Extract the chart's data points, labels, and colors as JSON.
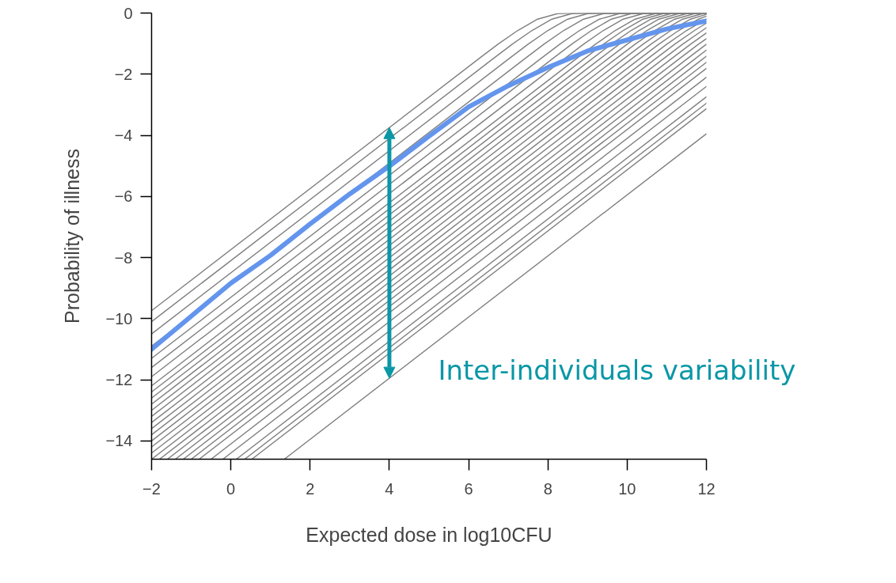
{
  "chart_data": {
    "type": "line",
    "xlabel": "Expected dose in log10CFU",
    "ylabel": "Probability of illness",
    "xlim": [
      -2,
      12
    ],
    "ylim": [
      -14.6,
      0
    ],
    "xticks": [
      -2,
      0,
      2,
      4,
      6,
      8,
      10,
      12
    ],
    "yticks": [
      -14,
      -12,
      -10,
      -8,
      -6,
      -4,
      -2,
      0
    ],
    "grid": false,
    "annotations": [
      {
        "text": "Inter-individuals variability",
        "x": 4,
        "y": -11.9
      }
    ],
    "series": [
      {
        "color": "#808080",
        "x": [
          -2,
          6.24,
          6.74,
          7.24,
          7.74,
          8.24,
          8.74,
          12
        ],
        "values": [
          -9.74,
          -1.51,
          -1.02,
          -0.57,
          -0.2,
          -0.02,
          0,
          0
        ]
      },
      {
        "color": "#808080",
        "x": [
          -2,
          6.6,
          7.1,
          7.6,
          8.1,
          8.6,
          9.1,
          12
        ],
        "values": [
          -10.1,
          -1.51,
          -1.02,
          -0.57,
          -0.2,
          -0.02,
          0,
          0
        ]
      },
      {
        "color": "#808080",
        "x": [
          -2,
          7.0,
          7.5,
          8.0,
          8.5,
          9.0,
          9.5,
          12
        ],
        "values": [
          -10.5,
          -1.51,
          -1.02,
          -0.57,
          -0.2,
          -0.02,
          0,
          0
        ]
      },
      {
        "color": "#808080",
        "x": [
          -2,
          7.4,
          7.9,
          8.4,
          8.9,
          9.4,
          9.9,
          12
        ],
        "values": [
          -10.9,
          -1.51,
          -1.02,
          -0.57,
          -0.2,
          -0.02,
          0,
          0
        ]
      },
      {
        "color": "#808080",
        "x": [
          -2,
          7.8,
          8.3,
          8.8,
          9.3,
          9.8,
          10.3,
          12
        ],
        "values": [
          -11.3,
          -1.51,
          -1.02,
          -0.57,
          -0.2,
          -0.02,
          0,
          0
        ]
      },
      {
        "color": "#808080",
        "x": [
          -2,
          8.1,
          8.6,
          9.1,
          9.6,
          10.1,
          10.6,
          12
        ],
        "values": [
          -11.6,
          -1.51,
          -1.02,
          -0.57,
          -0.2,
          -0.02,
          0,
          0
        ]
      },
      {
        "color": "#808080",
        "x": [
          -2,
          8.4,
          8.9,
          9.4,
          9.9,
          10.4,
          10.9,
          12
        ],
        "values": [
          -11.9,
          -1.51,
          -1.02,
          -0.57,
          -0.2,
          -0.02,
          0,
          0
        ]
      },
      {
        "color": "#808080",
        "x": [
          -2,
          8.7,
          9.2,
          9.7,
          10.2,
          10.7,
          11.2,
          12
        ],
        "values": [
          -12.2,
          -1.51,
          -1.02,
          -0.57,
          -0.2,
          -0.02,
          0,
          0
        ]
      },
      {
        "color": "#808080",
        "x": [
          -2,
          8.9,
          9.4,
          9.9,
          10.4,
          10.9,
          11.4,
          12
        ],
        "values": [
          -12.4,
          -1.51,
          -1.02,
          -0.57,
          -0.2,
          -0.02,
          0,
          0
        ]
      },
      {
        "color": "#808080",
        "x": [
          -2,
          9.1,
          9.6,
          10.1,
          10.6,
          11.1,
          11.6,
          12
        ],
        "values": [
          -12.6,
          -1.51,
          -1.02,
          -0.57,
          -0.2,
          -0.02,
          0,
          0
        ]
      },
      {
        "color": "#808080",
        "x": [
          -2,
          9.3,
          9.8,
          10.3,
          10.8,
          11.3,
          11.8,
          12
        ],
        "values": [
          -12.8,
          -1.51,
          -1.02,
          -0.57,
          -0.2,
          -0.02,
          0,
          0
        ]
      },
      {
        "color": "#808080",
        "x": [
          -2,
          9.5,
          10.0,
          10.5,
          11.0,
          11.5,
          12
        ],
        "values": [
          -13.0,
          -1.51,
          -1.02,
          -0.57,
          -0.2,
          -0.02,
          0
        ]
      },
      {
        "color": "#808080",
        "x": [
          -2,
          9.7,
          10.2,
          10.7,
          11.2,
          11.7,
          12
        ],
        "values": [
          -13.2,
          -1.51,
          -1.02,
          -0.57,
          -0.2,
          -0.02,
          0
        ]
      },
      {
        "color": "#808080",
        "x": [
          -2,
          9.9,
          10.4,
          10.9,
          11.4,
          11.9,
          12
        ],
        "values": [
          -13.4,
          -1.51,
          -1.02,
          -0.57,
          -0.2,
          -0.02,
          -0.01
        ]
      },
      {
        "color": "#808080",
        "x": [
          -2,
          10.1,
          10.6,
          11.1,
          11.6,
          12
        ],
        "values": [
          -13.6,
          -1.51,
          -1.02,
          -0.57,
          -0.2,
          -0.04
        ]
      },
      {
        "color": "#808080",
        "x": [
          -2,
          10.3,
          10.8,
          11.3,
          11.8,
          12
        ],
        "values": [
          -13.8,
          -1.51,
          -1.02,
          -0.57,
          -0.2,
          -0.1
        ]
      },
      {
        "color": "#808080",
        "x": [
          -2,
          10.5,
          11.0,
          11.5,
          12
        ],
        "values": [
          -14.0,
          -1.51,
          -1.02,
          -0.57,
          -0.2
        ]
      },
      {
        "color": "#808080",
        "x": [
          -2,
          10.7,
          11.2,
          11.7,
          12
        ],
        "values": [
          -14.2,
          -1.51,
          -1.02,
          -0.57,
          -0.33
        ]
      },
      {
        "color": "#808080",
        "x": [
          -2,
          10.9,
          11.4,
          11.9,
          12
        ],
        "values": [
          -14.4,
          -1.51,
          -1.02,
          -0.57,
          -0.48
        ]
      },
      {
        "color": "#808080",
        "x": [
          -2,
          11.1,
          11.6,
          12
        ],
        "values": [
          -14.6,
          -1.51,
          -1.02,
          -0.65
        ]
      },
      {
        "color": "#808080",
        "x": [
          -1.8,
          11.3,
          11.8,
          12
        ],
        "values": [
          -14.6,
          -1.51,
          -1.02,
          -0.84
        ]
      },
      {
        "color": "#808080",
        "x": [
          -1.6,
          11.5,
          12
        ],
        "values": [
          -14.6,
          -1.51,
          -1.02
        ]
      },
      {
        "color": "#808080",
        "x": [
          -1.4,
          11.7,
          12
        ],
        "values": [
          -14.6,
          -1.51,
          -1.21
        ]
      },
      {
        "color": "#808080",
        "x": [
          -1.2,
          11.9,
          12
        ],
        "values": [
          -14.6,
          -1.51,
          -1.41
        ]
      },
      {
        "color": "#808080",
        "x": [
          -1.0,
          12
        ],
        "values": [
          -14.6,
          -1.61
        ]
      },
      {
        "color": "#808080",
        "x": [
          -0.8,
          12
        ],
        "values": [
          -14.6,
          -1.81
        ]
      },
      {
        "color": "#808080",
        "x": [
          -0.5,
          12
        ],
        "values": [
          -14.6,
          -2.1
        ]
      },
      {
        "color": "#808080",
        "x": [
          -0.2,
          12
        ],
        "values": [
          -14.6,
          -2.4
        ]
      },
      {
        "color": "#808080",
        "x": [
          0.14,
          12
        ],
        "values": [
          -14.6,
          -2.74
        ]
      },
      {
        "color": "#808080",
        "x": [
          0.35,
          12
        ],
        "values": [
          -14.6,
          -2.95
        ]
      },
      {
        "color": "#808080",
        "x": [
          0.53,
          12
        ],
        "values": [
          -14.6,
          -3.13
        ]
      },
      {
        "color": "#808080",
        "x": [
          1.35,
          12
        ],
        "values": [
          -14.6,
          -3.95
        ]
      },
      {
        "color": "#6495ed",
        "x": [
          -2,
          -1,
          0,
          1,
          2,
          3,
          4,
          5,
          6,
          7,
          8,
          9,
          10,
          11,
          12
        ],
        "values": [
          -11.0,
          -9.92,
          -8.84,
          -7.93,
          -6.9,
          -5.92,
          -5.01,
          -4.03,
          -3.07,
          -2.38,
          -1.78,
          -1.24,
          -0.88,
          -0.52,
          -0.26
        ]
      }
    ]
  }
}
